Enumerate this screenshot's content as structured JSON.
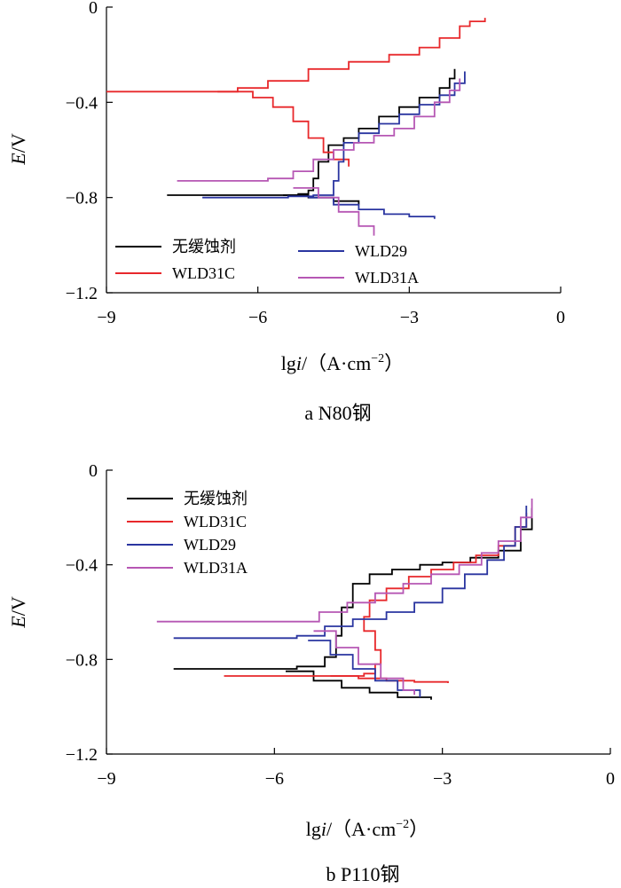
{
  "chart_data": [
    {
      "type": "line",
      "caption": "a N80钢",
      "xlabel_main": "lg",
      "xlabel_var": "i",
      "xlabel_units": "/（A·cm",
      "xlabel_exp": "−2",
      "xlabel_close": "）",
      "ylabel_var": "E",
      "ylabel_units": "/V",
      "xlim": [
        -9,
        0
      ],
      "ylim": [
        -1.2,
        0
      ],
      "xticks": [
        -9,
        -6,
        -3,
        0
      ],
      "yticks": [
        0,
        -0.4,
        -0.8,
        -1.2
      ],
      "xtick_labels": [
        "−9",
        "−6",
        "−3",
        "0"
      ],
      "ytick_labels": [
        "0",
        "−0.4",
        "−0.8",
        "−1.2"
      ],
      "legend_layout": "two-column",
      "series": [
        {
          "name": "无缓蚀剂",
          "color": "#000000",
          "branches": [
            [
              [
                -7.8,
                -0.79
              ],
              [
                -6.5,
                -0.79
              ],
              [
                -5.6,
                -0.79
              ],
              [
                -5.2,
                -0.785
              ],
              [
                -5.0,
                -0.77
              ],
              [
                -4.9,
                -0.72
              ],
              [
                -4.8,
                -0.65
              ],
              [
                -4.6,
                -0.58
              ],
              [
                -4.3,
                -0.55
              ],
              [
                -4.0,
                -0.51
              ],
              [
                -3.6,
                -0.46
              ],
              [
                -3.2,
                -0.42
              ],
              [
                -2.8,
                -0.38
              ],
              [
                -2.4,
                -0.34
              ],
              [
                -2.2,
                -0.3
              ],
              [
                -2.1,
                -0.26
              ]
            ],
            [
              [
                -5.5,
                -0.79
              ],
              [
                -5.0,
                -0.8
              ],
              [
                -4.5,
                -0.815
              ],
              [
                -4.0,
                -0.83
              ]
            ]
          ]
        },
        {
          "name": "WLD31C",
          "color": "#e8282b",
          "branches": [
            [
              [
                -9.0,
                -0.355
              ],
              [
                -7.0,
                -0.355
              ],
              [
                -6.4,
                -0.34
              ],
              [
                -5.8,
                -0.31
              ],
              [
                -5.0,
                -0.26
              ],
              [
                -4.2,
                -0.23
              ],
              [
                -3.4,
                -0.2
              ],
              [
                -2.8,
                -0.17
              ],
              [
                -2.4,
                -0.13
              ],
              [
                -2.0,
                -0.08
              ],
              [
                -1.8,
                -0.06
              ],
              [
                -1.5,
                -0.045
              ]
            ],
            [
              [
                -6.8,
                -0.355
              ],
              [
                -6.1,
                -0.38
              ],
              [
                -5.7,
                -0.42
              ],
              [
                -5.3,
                -0.48
              ],
              [
                -5.0,
                -0.55
              ],
              [
                -4.7,
                -0.61
              ],
              [
                -4.5,
                -0.64
              ],
              [
                -4.2,
                -0.67
              ]
            ]
          ]
        },
        {
          "name": "WLD29",
          "color": "#2a35a0",
          "branches": [
            [
              [
                -7.1,
                -0.8
              ],
              [
                -6.0,
                -0.8
              ],
              [
                -5.4,
                -0.795
              ],
              [
                -4.9,
                -0.79
              ],
              [
                -4.5,
                -0.73
              ],
              [
                -4.4,
                -0.65
              ],
              [
                -4.3,
                -0.57
              ],
              [
                -4.0,
                -0.53
              ],
              [
                -3.6,
                -0.49
              ],
              [
                -3.2,
                -0.45
              ],
              [
                -2.8,
                -0.41
              ],
              [
                -2.4,
                -0.37
              ],
              [
                -2.1,
                -0.32
              ],
              [
                -1.9,
                -0.27
              ]
            ],
            [
              [
                -5.0,
                -0.8
              ],
              [
                -4.5,
                -0.83
              ],
              [
                -4.0,
                -0.85
              ],
              [
                -3.5,
                -0.87
              ],
              [
                -3.0,
                -0.88
              ],
              [
                -2.5,
                -0.89
              ]
            ]
          ]
        },
        {
          "name": "WLD31A",
          "color": "#b657b4",
          "branches": [
            [
              [
                -7.6,
                -0.73
              ],
              [
                -6.5,
                -0.73
              ],
              [
                -5.8,
                -0.72
              ],
              [
                -5.3,
                -0.69
              ],
              [
                -4.9,
                -0.64
              ],
              [
                -4.5,
                -0.6
              ],
              [
                -4.1,
                -0.57
              ],
              [
                -3.7,
                -0.54
              ],
              [
                -3.3,
                -0.51
              ],
              [
                -2.9,
                -0.46
              ],
              [
                -2.5,
                -0.4
              ],
              [
                -2.2,
                -0.35
              ],
              [
                -2.0,
                -0.3
              ]
            ],
            [
              [
                -5.3,
                -0.76
              ],
              [
                -4.8,
                -0.8
              ],
              [
                -4.4,
                -0.86
              ],
              [
                -4.0,
                -0.92
              ],
              [
                -3.7,
                -0.96
              ]
            ]
          ]
        }
      ]
    },
    {
      "type": "line",
      "caption": "b P110钢",
      "xlabel_main": "lg",
      "xlabel_var": "i",
      "xlabel_units": "/（A·cm",
      "xlabel_exp": "−2",
      "xlabel_close": "）",
      "ylabel_var": "E",
      "ylabel_units": "/V",
      "xlim": [
        -9,
        0
      ],
      "ylim": [
        -1.2,
        0
      ],
      "xticks": [
        -9,
        -6,
        -3,
        0
      ],
      "yticks": [
        0,
        -0.4,
        -0.8,
        -1.2
      ],
      "xtick_labels": [
        "−9",
        "−6",
        "−3",
        "0"
      ],
      "ytick_labels": [
        "0",
        "−0.4",
        "−0.8",
        "−1.2"
      ],
      "legend_layout": "single-column",
      "series": [
        {
          "name": "无缓蚀剂",
          "color": "#000000",
          "branches": [
            [
              [
                -7.8,
                -0.84
              ],
              [
                -6.5,
                -0.84
              ],
              [
                -5.6,
                -0.83
              ],
              [
                -5.1,
                -0.79
              ],
              [
                -4.9,
                -0.7
              ],
              [
                -4.8,
                -0.58
              ],
              [
                -4.6,
                -0.48
              ],
              [
                -4.3,
                -0.44
              ],
              [
                -3.9,
                -0.42
              ],
              [
                -3.4,
                -0.4
              ],
              [
                -3.0,
                -0.39
              ],
              [
                -2.5,
                -0.37
              ],
              [
                -2.0,
                -0.34
              ],
              [
                -1.6,
                -0.25
              ],
              [
                -1.4,
                -0.16
              ]
            ],
            [
              [
                -5.8,
                -0.85
              ],
              [
                -5.3,
                -0.89
              ],
              [
                -4.8,
                -0.92
              ],
              [
                -4.3,
                -0.94
              ],
              [
                -3.8,
                -0.96
              ],
              [
                -3.2,
                -0.97
              ]
            ]
          ]
        },
        {
          "name": "WLD31C",
          "color": "#e8282b",
          "branches": [
            [
              [
                -6.9,
                -0.87
              ],
              [
                -5.5,
                -0.87
              ],
              [
                -4.8,
                -0.87
              ],
              [
                -4.4,
                -0.86
              ],
              [
                -4.2,
                -0.82
              ],
              [
                -4.1,
                -0.76
              ],
              [
                -4.2,
                -0.68
              ],
              [
                -4.4,
                -0.62
              ],
              [
                -4.3,
                -0.55
              ],
              [
                -4.0,
                -0.5
              ],
              [
                -3.6,
                -0.45
              ],
              [
                -3.2,
                -0.42
              ],
              [
                -2.8,
                -0.39
              ],
              [
                -2.4,
                -0.36
              ],
              [
                -2.0,
                -0.32
              ],
              [
                -1.7,
                -0.24
              ],
              [
                -1.5,
                -0.18
              ]
            ],
            [
              [
                -5.0,
                -0.87
              ],
              [
                -4.5,
                -0.88
              ],
              [
                -4.0,
                -0.89
              ],
              [
                -3.5,
                -0.895
              ],
              [
                -2.9,
                -0.9
              ]
            ]
          ]
        },
        {
          "name": "WLD29",
          "color": "#2a35a0",
          "branches": [
            [
              [
                -7.8,
                -0.71
              ],
              [
                -6.5,
                -0.71
              ],
              [
                -5.6,
                -0.7
              ],
              [
                -5.1,
                -0.66
              ],
              [
                -4.6,
                -0.63
              ],
              [
                -4.0,
                -0.6
              ],
              [
                -3.5,
                -0.56
              ],
              [
                -3.0,
                -0.5
              ],
              [
                -2.6,
                -0.44
              ],
              [
                -2.2,
                -0.38
              ],
              [
                -1.9,
                -0.32
              ],
              [
                -1.7,
                -0.24
              ],
              [
                -1.5,
                -0.15
              ]
            ],
            [
              [
                -5.4,
                -0.72
              ],
              [
                -5.0,
                -0.78
              ],
              [
                -4.6,
                -0.84
              ],
              [
                -4.2,
                -0.89
              ],
              [
                -3.8,
                -0.93
              ],
              [
                -3.4,
                -0.96
              ]
            ]
          ]
        },
        {
          "name": "WLD31A",
          "color": "#b657b4",
          "branches": [
            [
              [
                -8.1,
                -0.64
              ],
              [
                -6.8,
                -0.64
              ],
              [
                -5.8,
                -0.64
              ],
              [
                -5.2,
                -0.6
              ],
              [
                -4.7,
                -0.56
              ],
              [
                -4.2,
                -0.52
              ],
              [
                -3.7,
                -0.48
              ],
              [
                -3.2,
                -0.44
              ],
              [
                -2.7,
                -0.4
              ],
              [
                -2.3,
                -0.35
              ],
              [
                -2.0,
                -0.3
              ],
              [
                -1.6,
                -0.2
              ],
              [
                -1.4,
                -0.12
              ]
            ],
            [
              [
                -5.3,
                -0.68
              ],
              [
                -4.9,
                -0.75
              ],
              [
                -4.5,
                -0.82
              ],
              [
                -4.1,
                -0.88
              ],
              [
                -3.7,
                -0.93
              ],
              [
                -3.5,
                -0.95
              ]
            ]
          ]
        }
      ]
    }
  ]
}
